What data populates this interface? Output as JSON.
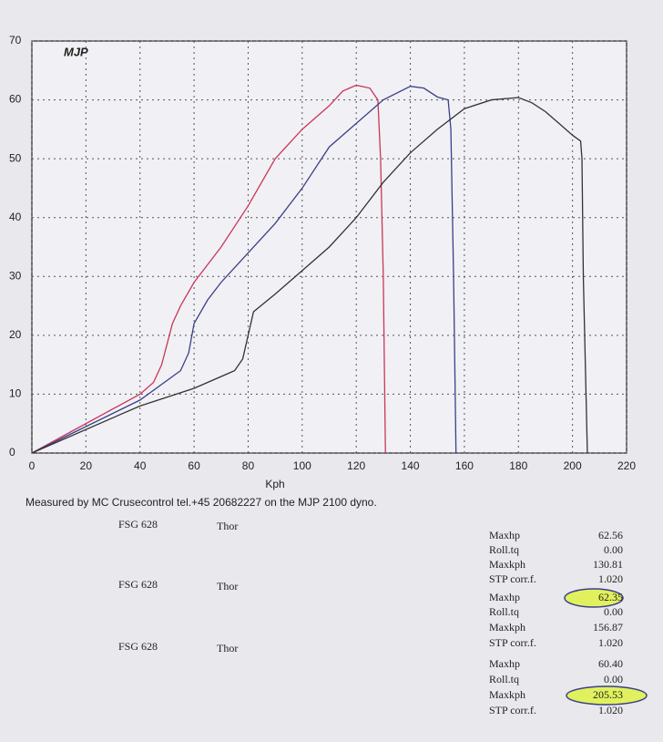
{
  "chart_data": {
    "type": "line",
    "logo": "MJP",
    "xlabel": "Kph",
    "xlim": [
      0,
      220
    ],
    "ylim": [
      0,
      70
    ],
    "xticks": [
      0,
      20,
      40,
      60,
      80,
      100,
      120,
      140,
      160,
      180,
      200,
      220
    ],
    "yticks": [
      0,
      10,
      20,
      30,
      40,
      50,
      60,
      70
    ],
    "grid": true,
    "series": [
      {
        "color": "#c8375a",
        "x": [
          0,
          40,
          45,
          48,
          52,
          55,
          60,
          70,
          80,
          90,
          100,
          110,
          115,
          120,
          125,
          128,
          129,
          130,
          130.8
        ],
        "values": [
          0,
          10,
          12,
          15,
          22,
          25,
          29,
          35,
          42,
          50,
          55,
          59,
          61.5,
          62.5,
          62,
          60,
          50,
          30,
          0
        ]
      },
      {
        "color": "#3a3f8a",
        "x": [
          0,
          40,
          55,
          58,
          60,
          65,
          70,
          80,
          90,
          100,
          110,
          120,
          130,
          140,
          145,
          150,
          154,
          155,
          156,
          156.9
        ],
        "values": [
          0,
          9,
          14,
          17,
          22,
          26,
          29,
          34,
          39,
          45,
          52,
          56,
          60,
          62.3,
          62,
          60.5,
          60,
          55,
          30,
          0
        ]
      },
      {
        "color": "#333333",
        "x": [
          0,
          40,
          60,
          75,
          78,
          80,
          82,
          90,
          100,
          110,
          120,
          130,
          140,
          150,
          160,
          170,
          180,
          185,
          190,
          195,
          200,
          203,
          203.5,
          204,
          205.5
        ],
        "values": [
          0,
          8,
          11,
          14,
          16,
          20,
          24,
          27,
          31,
          35,
          40,
          46,
          51,
          55,
          58.5,
          60,
          60.4,
          59.5,
          58,
          56,
          54,
          53,
          50,
          30,
          0
        ]
      }
    ]
  },
  "caption": "Measured by MC Crusecontrol tel.+45 20682227 on the MJP 2100 dyno.",
  "runs": [
    {
      "name": "FSG 628",
      "rider": "Thor",
      "color": "#c8375a",
      "stats": [
        {
          "label": "Maxhp",
          "value": "62.56"
        },
        {
          "label": "Roll.tq",
          "value": "0.00"
        },
        {
          "label": "Maxkph",
          "value": "130.81"
        },
        {
          "label": "STP corr.f.",
          "value": "1.020"
        }
      ]
    },
    {
      "name": "FSG 628",
      "rider": "Thor",
      "color": "#3a3f8a",
      "stats": [
        {
          "label": "Maxhp",
          "value": "62.35"
        },
        {
          "label": "Roll.tq",
          "value": "0.00"
        },
        {
          "label": "Maxkph",
          "value": "156.87"
        },
        {
          "label": "STP corr.f.",
          "value": "1.020"
        }
      ]
    },
    {
      "name": "FSG 628",
      "rider": "Thor",
      "color": "#333333",
      "stats": [
        {
          "label": "Maxhp",
          "value": "60.40"
        },
        {
          "label": "Roll.tq",
          "value": "0.00"
        },
        {
          "label": "Maxkph",
          "value": "205.53"
        },
        {
          "label": "STP corr.f.",
          "value": "1.020"
        }
      ]
    }
  ]
}
